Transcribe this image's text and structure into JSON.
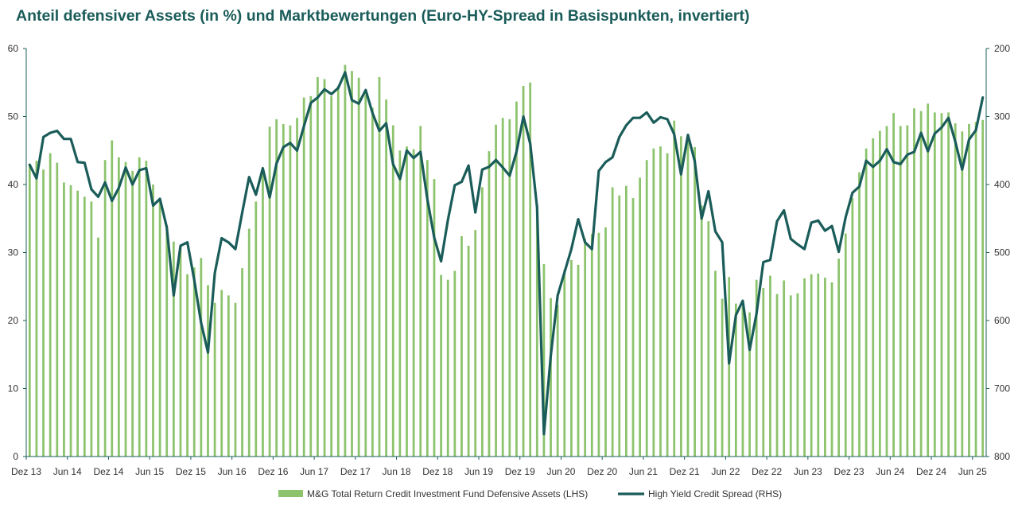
{
  "chart_data": {
    "type": "bar",
    "title": "Anteil defensiver Assets (in %) und Marktbewertungen (Euro-HY-Spread in Basispunkten, invertiert)",
    "x_tick_labels": [
      "Dez 13",
      "Jun 14",
      "Dez 14",
      "Jun 15",
      "Dez 15",
      "Jun 16",
      "Dez 16",
      "Jun 17",
      "Dez 17",
      "Jun 18",
      "Dez 18",
      "Jun 19",
      "Dez 19",
      "Jun 20",
      "Dez 20",
      "Jun 21",
      "Dez 21",
      "Jun 22",
      "Dez 22",
      "Jun 23",
      "Dez 23",
      "Jun 24",
      "Dez 24",
      "Jun 25"
    ],
    "y_left": {
      "min": 0,
      "max": 60,
      "step": 10,
      "ticks": [
        "0",
        "10",
        "20",
        "30",
        "40",
        "50",
        "60"
      ]
    },
    "y_right": {
      "min": 200,
      "max": 800,
      "step": 100,
      "inverted": true,
      "ticks": [
        "200",
        "300",
        "400",
        "500",
        "600",
        "700",
        "800"
      ]
    },
    "legend_position": "bottom",
    "series": [
      {
        "name": "M&G Total Return Credit Investment Fund Defensive Assets (LHS)",
        "type": "bar",
        "axis": "left",
        "color": "#8cc36c",
        "values": [
          43.0,
          43.5,
          42.2,
          44.6,
          43.2,
          40.3,
          39.9,
          39.1,
          38.2,
          37.5,
          32.2,
          43.6,
          46.5,
          44.0,
          43.3,
          42.0,
          44.0,
          43.5,
          40.0,
          38.0,
          34.0,
          31.6,
          31.0,
          26.8,
          27.8,
          29.2,
          25.2,
          22.6,
          24.5,
          23.7,
          22.6,
          27.7,
          33.5,
          37.5,
          42.0,
          48.5,
          49.6,
          48.9,
          48.7,
          49.8,
          52.8,
          53.0,
          55.8,
          55.5,
          53.0,
          54.5,
          57.6,
          56.7,
          55.7,
          53.2,
          51.3,
          55.8,
          52.5,
          48.7,
          45.0,
          45.6,
          45.2,
          48.6,
          43.6,
          40.8,
          26.7,
          26.0,
          27.3,
          32.4,
          31.0,
          33.3,
          39.6,
          44.9,
          48.8,
          49.8,
          49.6,
          52.2,
          54.5,
          55.0,
          37.1,
          28.3,
          23.3,
          22.3,
          27.5,
          28.9,
          28.2,
          32.0,
          32.7,
          32.9,
          33.7,
          39.6,
          38.4,
          39.8,
          38.0,
          41.0,
          43.6,
          45.3,
          45.6,
          44.6,
          49.4,
          47.1,
          46.9,
          45.5,
          36.9,
          34.6,
          27.3,
          23.2,
          26.4,
          22.5,
          22.0,
          21.2,
          26.0,
          24.8,
          26.6,
          23.9,
          25.9,
          23.7,
          24.0,
          26.2,
          26.8,
          26.9,
          26.3,
          25.6,
          29.1,
          32.8,
          38.0,
          41.8,
          45.3,
          46.8,
          47.9,
          48.6,
          50.5,
          48.6,
          48.7,
          51.2,
          50.8,
          51.9,
          50.6,
          50.5,
          50.6,
          49.0,
          47.8,
          48.9,
          49.2,
          49.5
        ]
      },
      {
        "name": "High Yield Credit Spread (RHS)",
        "type": "line",
        "axis": "right",
        "color": "#1a5c59",
        "values": [
          371,
          391,
          330,
          324,
          321,
          333,
          333,
          367,
          368,
          407,
          418,
          397,
          424,
          405,
          375,
          400,
          379,
          376,
          431,
          421,
          463,
          563,
          490,
          485,
          540,
          603,
          647,
          530,
          479,
          485,
          495,
          441,
          389,
          415,
          376,
          419,
          369,
          345,
          339,
          350,
          314,
          280,
          272,
          260,
          267,
          258,
          235,
          276,
          281,
          261,
          295,
          321,
          310,
          370,
          392,
          350,
          361,
          352,
          422,
          478,
          513,
          452,
          401,
          396,
          372,
          441,
          378,
          374,
          364,
          375,
          387,
          352,
          300,
          340,
          434,
          767,
          652,
          563,
          529,
          495,
          451,
          485,
          495,
          380,
          367,
          360,
          330,
          313,
          302,
          302,
          294,
          309,
          301,
          304,
          326,
          385,
          327,
          366,
          450,
          410,
          469,
          485,
          663,
          592,
          571,
          643,
          590,
          514,
          511,
          454,
          438,
          480,
          488,
          495,
          456,
          453,
          468,
          461,
          499,
          448,
          412,
          403,
          365,
          374,
          365,
          348,
          367,
          370,
          356,
          352,
          324,
          351,
          325,
          316,
          302,
          337,
          378,
          334,
          320,
          272
        ]
      }
    ]
  }
}
